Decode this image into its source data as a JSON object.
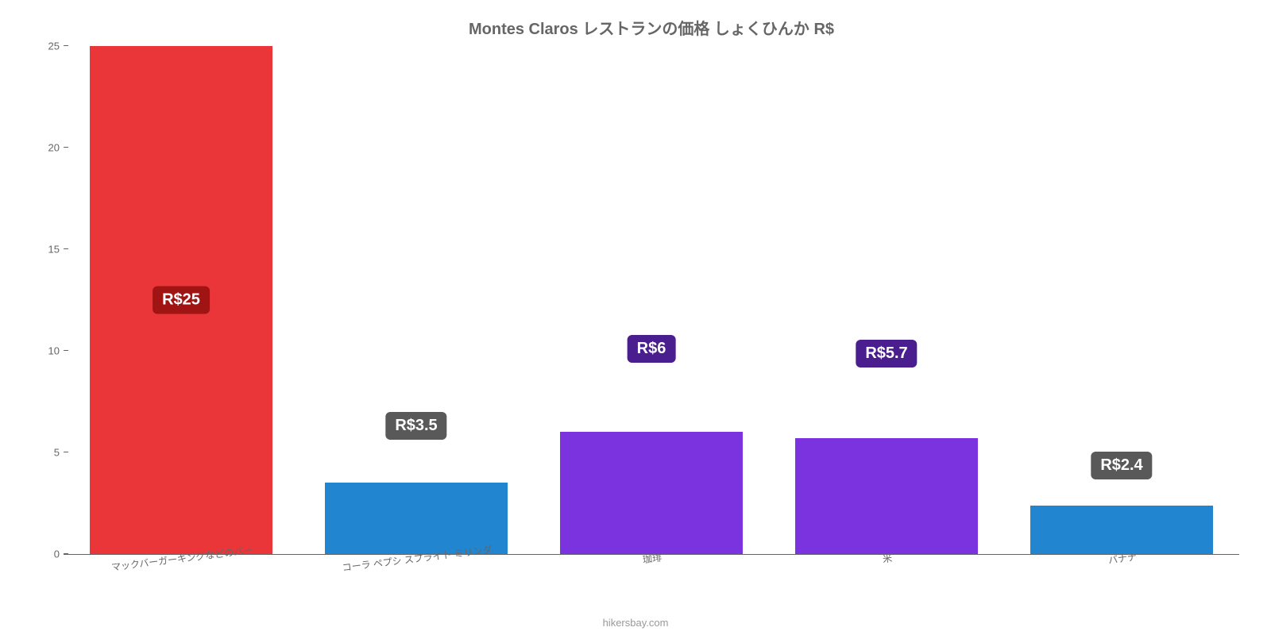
{
  "chart": {
    "type": "bar",
    "title": "Montes Claros レストランの価格 しょくひんか R$",
    "title_fontsize": 20,
    "title_color": "#666666",
    "background_color": "#ffffff",
    "ylim": [
      0,
      25
    ],
    "ytick_step": 5,
    "yticks": [
      0,
      5,
      10,
      15,
      20,
      25
    ],
    "axis_color": "#666666",
    "label_fontsize": 12,
    "label_color": "#666666",
    "value_label_fontsize": 20,
    "bar_width": 0.78,
    "categories": [
      "マックバーガーキングなどのバー",
      "コーラ ペプシ スプライト ミリンダ",
      "珈琲",
      "米",
      "バナナ"
    ],
    "values": [
      25,
      3.5,
      6,
      5.7,
      2.4
    ],
    "value_labels": [
      "R$25",
      "R$3.5",
      "R$6",
      "R$5.7",
      "R$2.4"
    ],
    "bar_colors": [
      "#eb3639",
      "#2185d0",
      "#7b33e0",
      "#7b33e0",
      "#2185d0"
    ],
    "value_label_bg": [
      "#a01414",
      "#595959",
      "#4b1e8f",
      "#4b1e8f",
      "#595959"
    ],
    "value_label_top_pct": [
      50,
      -100,
      -80,
      -85,
      -110
    ],
    "credit": "hikersbay.com",
    "credit_color": "#999999"
  }
}
